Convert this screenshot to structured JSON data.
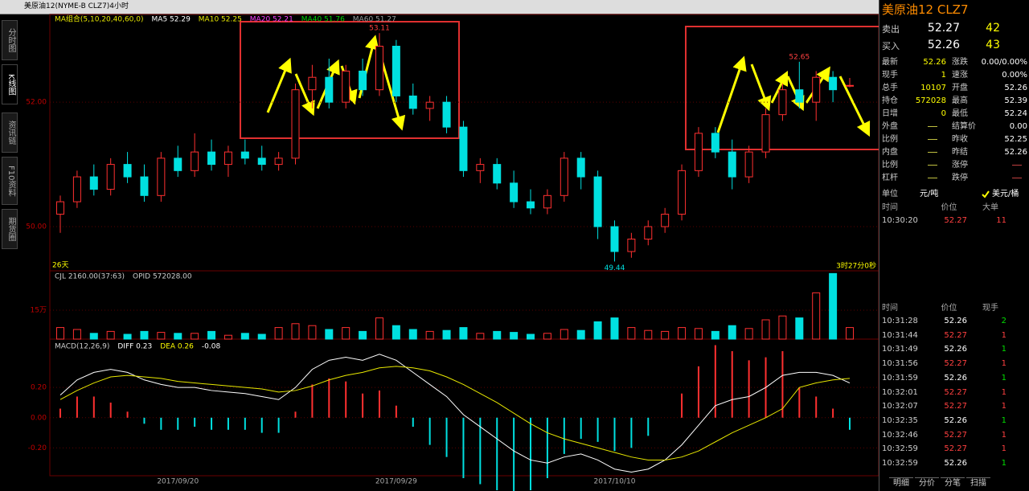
{
  "window": {
    "title": "美原油12(NYME-B CLZ7)4小时"
  },
  "sidebar": {
    "tabs": [
      "分时图",
      "K线图",
      "资讯链",
      "F10资料",
      "期货圈"
    ]
  },
  "chart": {
    "ma_legend": [
      "MA组合(5,10,20,40,60,0)",
      "MA5 52.29",
      "MA10 52.25",
      "MA20 52.21",
      "MA40 51.76",
      "MA60 51.27"
    ],
    "ma_colors": [
      "#e8e800",
      "#ffffff",
      "#e8e800",
      "#ff40ff",
      "#00d000",
      "#9a9a9a"
    ],
    "annotations": {
      "high_1": "53.11",
      "high_2": "52.65",
      "low": "49.44",
      "bars": "26天",
      "countdown": "3时27分0秒"
    },
    "up_color": "#ff3030",
    "down_color": "#00e0e0",
    "price": {
      "ylim": [
        49.29,
        53.41
      ],
      "yticks": [
        {
          "value": 50,
          "label": "50.00"
        },
        {
          "value": 52,
          "label": "52.00"
        }
      ],
      "ohlc": [
        [
          50.2,
          50.5,
          49.9,
          50.4
        ],
        [
          50.4,
          50.9,
          50.3,
          50.8
        ],
        [
          50.8,
          51.0,
          50.5,
          50.6
        ],
        [
          50.6,
          51.1,
          50.5,
          51.0
        ],
        [
          51.0,
          51.2,
          50.7,
          50.8
        ],
        [
          50.8,
          51.0,
          50.4,
          50.5
        ],
        [
          50.5,
          51.2,
          50.4,
          51.1
        ],
        [
          51.1,
          51.3,
          50.8,
          50.9
        ],
        [
          50.9,
          51.5,
          50.8,
          51.2
        ],
        [
          51.2,
          51.4,
          50.9,
          51.0
        ],
        [
          51.0,
          51.3,
          50.8,
          51.2
        ],
        [
          51.2,
          51.4,
          51.0,
          51.1
        ],
        [
          51.1,
          51.3,
          50.9,
          51.0
        ],
        [
          51.0,
          51.2,
          50.9,
          51.1
        ],
        [
          51.1,
          52.3,
          51.0,
          52.2
        ],
        [
          52.2,
          52.6,
          51.9,
          52.4
        ],
        [
          52.4,
          52.7,
          51.9,
          52.0
        ],
        [
          52.0,
          52.6,
          51.9,
          52.5
        ],
        [
          52.5,
          52.7,
          52.1,
          52.2
        ],
        [
          52.2,
          53.11,
          52.1,
          52.9
        ],
        [
          52.9,
          53.0,
          52.0,
          52.1
        ],
        [
          52.1,
          52.3,
          51.8,
          51.9
        ],
        [
          51.9,
          52.1,
          51.7,
          52.0
        ],
        [
          52.0,
          52.1,
          51.5,
          51.6
        ],
        [
          51.6,
          51.7,
          50.8,
          50.9
        ],
        [
          50.9,
          51.1,
          50.7,
          51.0
        ],
        [
          51.0,
          51.1,
          50.6,
          50.7
        ],
        [
          50.7,
          50.9,
          50.3,
          50.4
        ],
        [
          50.4,
          50.6,
          50.2,
          50.3
        ],
        [
          50.3,
          50.6,
          50.2,
          50.5
        ],
        [
          50.5,
          51.2,
          50.4,
          51.1
        ],
        [
          51.1,
          51.2,
          50.6,
          50.8
        ],
        [
          50.8,
          50.9,
          49.8,
          50.0
        ],
        [
          50.0,
          50.1,
          49.44,
          49.6
        ],
        [
          49.6,
          49.9,
          49.5,
          49.8
        ],
        [
          49.8,
          50.1,
          49.7,
          50.0
        ],
        [
          50.0,
          50.3,
          49.9,
          50.2
        ],
        [
          50.2,
          51.0,
          50.1,
          50.9
        ],
        [
          50.9,
          51.6,
          50.8,
          51.5
        ],
        [
          51.5,
          51.6,
          51.1,
          51.2
        ],
        [
          51.2,
          51.4,
          50.6,
          50.8
        ],
        [
          50.8,
          51.3,
          50.7,
          51.2
        ],
        [
          51.2,
          51.9,
          51.1,
          51.8
        ],
        [
          51.8,
          52.3,
          51.7,
          52.2
        ],
        [
          52.2,
          52.65,
          51.9,
          52.0
        ],
        [
          52.0,
          52.5,
          51.7,
          52.4
        ],
        [
          52.4,
          52.5,
          52.0,
          52.2
        ],
        [
          52.26,
          52.39,
          52.24,
          52.27
        ]
      ]
    },
    "dates": [
      null,
      null,
      null,
      null,
      null,
      null,
      null,
      "2017/09/20",
      null,
      null,
      null,
      null,
      null,
      null,
      null,
      null,
      null,
      null,
      null,
      null,
      "2017/09/29",
      null,
      null,
      null,
      null,
      null,
      null,
      null,
      null,
      null,
      null,
      null,
      null,
      "2017/10/10",
      null,
      null,
      null,
      null,
      null,
      null,
      null,
      null,
      null,
      null,
      null,
      null,
      null,
      null
    ],
    "volume": {
      "legend": [
        "CJL 2160.00(37:63)",
        "OPID 572028.00"
      ],
      "ylim": [
        0,
        354000
      ],
      "yticks": [
        {
          "value": 150000,
          "label": "15万"
        }
      ],
      "values": [
        60000,
        50000,
        30000,
        40000,
        25000,
        40000,
        35000,
        30000,
        30000,
        40000,
        20000,
        30000,
        25000,
        60000,
        80000,
        70000,
        50000,
        60000,
        40000,
        110000,
        70000,
        50000,
        40000,
        45000,
        60000,
        30000,
        40000,
        35000,
        25000,
        30000,
        50000,
        45000,
        90000,
        110000,
        60000,
        45000,
        40000,
        60000,
        55000,
        40000,
        70000,
        55000,
        100000,
        120000,
        110000,
        240000,
        340000,
        60000
      ]
    },
    "macd": {
      "legend": [
        "MACD(12,26,9)",
        "DIFF 0.23",
        "DEA 0.26",
        "-0.08"
      ],
      "ylim": [
        -0.384,
        0.52
      ],
      "yticks": [
        {
          "value": 0.2,
          "label": "0.20"
        },
        {
          "value": 0,
          "label": "0.00"
        },
        {
          "value": -0.2,
          "label": "-0.20"
        }
      ],
      "diff": [
        0.15,
        0.25,
        0.3,
        0.32,
        0.3,
        0.25,
        0.22,
        0.2,
        0.2,
        0.18,
        0.17,
        0.16,
        0.14,
        0.12,
        0.2,
        0.32,
        0.38,
        0.4,
        0.38,
        0.42,
        0.38,
        0.3,
        0.22,
        0.14,
        0.02,
        -0.06,
        -0.14,
        -0.22,
        -0.28,
        -0.3,
        -0.26,
        -0.24,
        -0.28,
        -0.34,
        -0.36,
        -0.34,
        -0.28,
        -0.18,
        -0.05,
        0.08,
        0.12,
        0.14,
        0.2,
        0.28,
        0.3,
        0.3,
        0.28,
        0.23
      ],
      "dea": [
        0.12,
        0.18,
        0.23,
        0.27,
        0.28,
        0.27,
        0.26,
        0.24,
        0.23,
        0.22,
        0.21,
        0.2,
        0.19,
        0.17,
        0.18,
        0.21,
        0.25,
        0.28,
        0.3,
        0.33,
        0.34,
        0.33,
        0.31,
        0.27,
        0.22,
        0.16,
        0.1,
        0.03,
        -0.04,
        -0.1,
        -0.14,
        -0.17,
        -0.2,
        -0.23,
        -0.26,
        -0.28,
        -0.28,
        -0.26,
        -0.22,
        -0.16,
        -0.1,
        -0.05,
        0.0,
        0.06,
        0.2,
        0.23,
        0.25,
        0.26
      ],
      "hist": [
        0.06,
        0.14,
        0.14,
        0.1,
        0.04,
        -0.04,
        -0.08,
        -0.08,
        -0.06,
        -0.08,
        -0.08,
        -0.08,
        -0.1,
        -0.1,
        0.04,
        0.22,
        0.26,
        0.24,
        0.16,
        0.18,
        0.08,
        -0.06,
        -0.18,
        -0.26,
        -0.4,
        -0.44,
        -0.48,
        -0.5,
        -0.48,
        -0.4,
        -0.24,
        -0.14,
        -0.16,
        -0.22,
        -0.2,
        -0.12,
        0,
        0.16,
        0.34,
        0.48,
        0.44,
        0.38,
        0.4,
        0.44,
        0.2,
        0.14,
        0.06,
        -0.08
      ]
    }
  },
  "quote": {
    "title": "美原油12 CLZ7",
    "book": [
      [
        "卖出",
        "52.27",
        "42"
      ],
      [
        "买入",
        "52.26",
        "43"
      ]
    ],
    "stats": [
      [
        "最新",
        "52.26",
        "涨跌",
        "0.00/0.00%"
      ],
      [
        "现手",
        "1",
        "速涨",
        "0.00%"
      ],
      [
        "总手",
        "10107",
        "开盘",
        "52.26"
      ],
      [
        "持仓",
        "572028",
        "最高",
        "52.39"
      ],
      [
        "日增",
        "0",
        "最低",
        "52.24"
      ],
      [
        "外盘",
        null,
        "结算价",
        "0.00"
      ],
      [
        "比例",
        null,
        "昨收",
        "52.25"
      ],
      [
        "内盘",
        null,
        "昨结",
        "52.26"
      ],
      [
        "比例",
        null,
        "涨停",
        null
      ],
      [
        "杠杆",
        null,
        "跌停",
        null
      ]
    ],
    "units": [
      "单位",
      "元/吨",
      "美元/桶"
    ],
    "big_trades": {
      "header": [
        "时间",
        "价位",
        "大单"
      ],
      "rows": [
        [
          "10:30:20",
          "52.27",
          "11"
        ]
      ]
    },
    "ticks": {
      "header": [
        "时间",
        "价位",
        "现手"
      ],
      "rows": [
        [
          "10:31:28",
          "52.26",
          "2"
        ],
        [
          "10:31:44",
          "52.27",
          "1"
        ],
        [
          "10:31:49",
          "52.26",
          "1"
        ],
        [
          "10:31:56",
          "52.27",
          "1"
        ],
        [
          "10:31:59",
          "52.26",
          "1"
        ],
        [
          "10:32:01",
          "52.27",
          "1"
        ],
        [
          "10:32:07",
          "52.27",
          "1"
        ],
        [
          "10:32:35",
          "52.26",
          "1"
        ],
        [
          "10:32:46",
          "52.27",
          "1"
        ],
        [
          "10:32:59",
          "52.27",
          "1"
        ],
        [
          "10:32:59",
          "52.26",
          "1"
        ]
      ]
    },
    "tabs": [
      "明细",
      "分价",
      "分笔",
      "扫描"
    ]
  }
}
